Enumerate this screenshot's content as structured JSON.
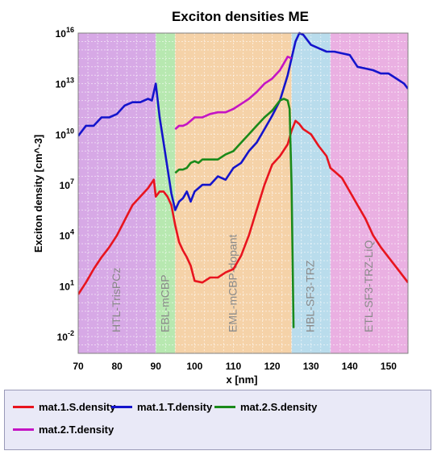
{
  "chart_data": {
    "type": "line",
    "title": "Exciton densities ME",
    "xlabel": "x [nm]",
    "ylabel": "Exciton density [cm^-3]",
    "xlim": [
      70,
      155
    ],
    "ylim_log10": [
      -3,
      16
    ],
    "x_ticks": [
      "70",
      "80",
      "90",
      "100",
      "110",
      "120",
      "130",
      "140",
      "150"
    ],
    "y_ticks": [
      {
        "base": "10",
        "exp": "-2"
      },
      {
        "base": "10",
        "exp": "1"
      },
      {
        "base": "10",
        "exp": "4"
      },
      {
        "base": "10",
        "exp": "7"
      },
      {
        "base": "10",
        "exp": "10"
      },
      {
        "base": "10",
        "exp": "13"
      },
      {
        "base": "10",
        "exp": "16"
      }
    ],
    "y_scale": "log",
    "grid": true,
    "regions": [
      {
        "label": "HTL-TrisPCz",
        "x0": 70,
        "x1": 90,
        "color": "#d7a9e6"
      },
      {
        "label": "EBL-mCBP",
        "x0": 90,
        "x1": 95,
        "color": "#b7e8b0"
      },
      {
        "label": "EML-mCBP-dopant",
        "x0": 95,
        "x1": 125,
        "color": "#f5d2a8"
      },
      {
        "label": "HBL-SF3-TRZ",
        "x0": 125,
        "x1": 135,
        "color": "#b9dcec"
      },
      {
        "label": "ETL-SF3-TRZ-LiQ",
        "x0": 135,
        "x1": 155,
        "color": "#eab0e2"
      }
    ],
    "series": [
      {
        "name": "mat.1.S.density",
        "color": "#e8141e",
        "x": [
          70,
          72,
          74,
          76,
          78,
          80,
          82,
          84,
          86,
          88,
          89.5,
          90,
          91,
          92,
          93,
          94,
          95,
          96,
          97,
          98,
          99,
          100,
          102,
          104,
          106,
          108,
          110,
          112,
          114,
          116,
          118,
          120,
          122,
          124,
          125,
          126,
          127,
          128,
          130,
          132,
          134,
          135,
          136,
          138,
          140,
          142,
          144,
          146,
          148,
          150,
          152,
          155
        ],
        "y_log10": [
          0.5,
          1.2,
          2.0,
          2.7,
          3.3,
          4.0,
          4.9,
          5.8,
          6.3,
          6.8,
          7.3,
          6.3,
          6.6,
          6.6,
          6.3,
          5.8,
          4.6,
          3.6,
          3.1,
          2.7,
          2.2,
          1.3,
          1.2,
          1.5,
          1.5,
          1.8,
          2.0,
          2.8,
          4.0,
          5.5,
          7.0,
          8.2,
          8.7,
          9.4,
          10.2,
          10.8,
          10.6,
          10.3,
          10.0,
          9.3,
          8.7,
          8.0,
          7.8,
          7.4,
          6.6,
          5.8,
          5.0,
          4.0,
          3.3,
          2.7,
          2.1,
          1.2
        ]
      },
      {
        "name": "mat.1.T.density",
        "color": "#1414cc",
        "x": [
          70,
          72,
          74,
          76,
          78,
          80,
          82,
          84,
          86,
          88,
          89,
          90,
          91,
          92,
          93,
          94,
          95,
          96,
          97,
          98,
          99,
          100,
          102,
          104,
          106,
          108,
          110,
          112,
          114,
          116,
          118,
          120,
          122,
          124,
          125,
          126,
          127,
          128,
          130,
          132,
          134,
          136,
          138,
          140,
          142,
          144,
          146,
          148,
          150,
          152,
          154,
          155
        ],
        "y_log10": [
          9.9,
          10.5,
          10.5,
          11.0,
          11.0,
          11.2,
          11.7,
          11.9,
          11.9,
          12.1,
          12.0,
          13.0,
          11.0,
          9.5,
          8.0,
          6.5,
          5.5,
          6.0,
          6.2,
          6.6,
          6.0,
          6.6,
          7.0,
          7.0,
          7.5,
          7.3,
          8.0,
          8.3,
          9.0,
          9.5,
          10.3,
          11.1,
          12.0,
          13.5,
          14.5,
          15.5,
          16.0,
          15.9,
          15.3,
          15.1,
          14.9,
          14.9,
          14.8,
          14.7,
          14.0,
          13.9,
          13.8,
          13.6,
          13.6,
          13.3,
          13.0,
          12.7
        ]
      },
      {
        "name": "mat.2.S.density",
        "color": "#1a8a1a",
        "x": [
          95,
          96,
          97,
          98,
          99,
          100,
          101,
          102,
          104,
          106,
          108,
          110,
          112,
          114,
          116,
          118,
          120,
          122,
          123,
          124,
          124.5,
          125,
          125.5
        ],
        "y_log10": [
          7.7,
          7.9,
          7.9,
          8.0,
          8.3,
          8.4,
          8.3,
          8.5,
          8.5,
          8.5,
          8.8,
          9.0,
          9.5,
          10.0,
          10.5,
          11.0,
          11.4,
          12.0,
          12.1,
          12.0,
          11.5,
          7.0,
          -1.5
        ]
      },
      {
        "name": "mat.2.T.density",
        "color": "#c414c4",
        "x": [
          95,
          96,
          97,
          98,
          99,
          100,
          102,
          104,
          106,
          108,
          110,
          112,
          114,
          116,
          118,
          120,
          122,
          124,
          125
        ],
        "y_log10": [
          10.3,
          10.5,
          10.5,
          10.6,
          10.8,
          11.0,
          11.0,
          11.2,
          11.3,
          11.3,
          11.5,
          11.8,
          12.1,
          12.5,
          13.0,
          13.3,
          13.8,
          14.6,
          14.5
        ]
      }
    ],
    "legend": [
      "mat.1.S.density",
      "mat.1.T.density",
      "mat.2.S.density",
      "mat.2.T.density"
    ],
    "legend_position": "bottom"
  }
}
